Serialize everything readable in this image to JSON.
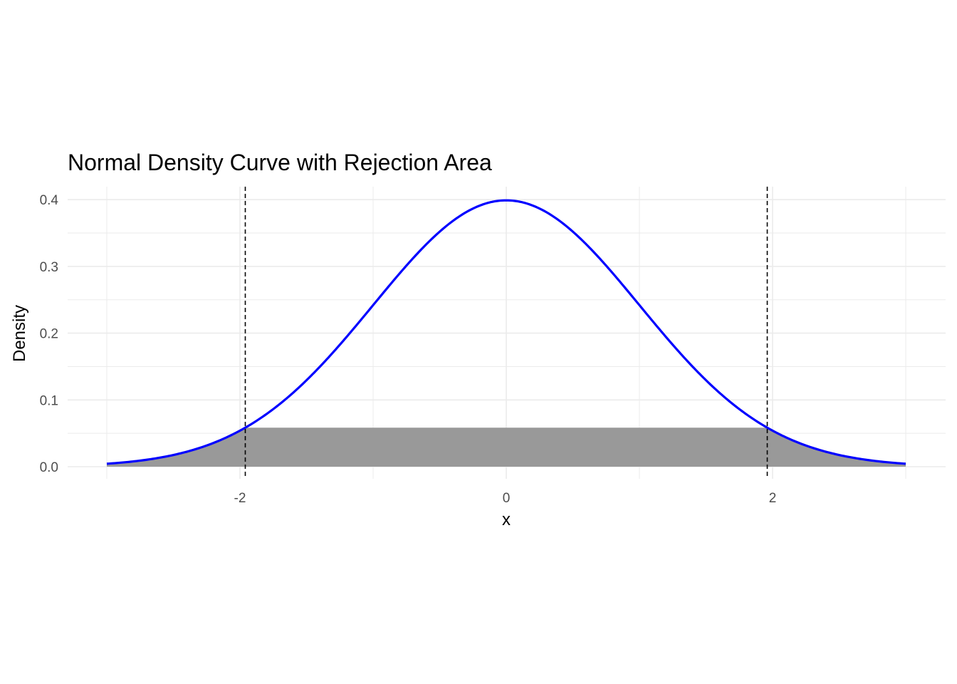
{
  "chart_data": {
    "type": "area",
    "title": "Normal Density Curve with Rejection Area",
    "xlabel": "x",
    "ylabel": "Density",
    "xlim": [
      -3,
      3
    ],
    "ylim": [
      0,
      0.4
    ],
    "x_ticks": [
      -2,
      0,
      2
    ],
    "x_tick_labels": [
      "-2",
      "0",
      "2"
    ],
    "y_ticks": [
      0.0,
      0.1,
      0.2,
      0.3,
      0.4
    ],
    "y_tick_labels": [
      "0.0",
      "0.1",
      "0.2",
      "0.3",
      "0.4"
    ],
    "grid": true,
    "series": [
      {
        "type": "line",
        "distribution": "normal",
        "mean": 0,
        "sd": 1,
        "x_range": [
          -3,
          3
        ],
        "color": "#0000ff"
      }
    ],
    "shaded_region": {
      "fill": "#999999",
      "x_range": [
        -3,
        3
      ],
      "y_max": 0.0584,
      "description": "area under curve capped at density at critical value"
    },
    "vlines": [
      {
        "x": -1.96,
        "style": "dashed",
        "color": "#000000"
      },
      {
        "x": 1.96,
        "style": "dashed",
        "color": "#000000"
      }
    ]
  }
}
